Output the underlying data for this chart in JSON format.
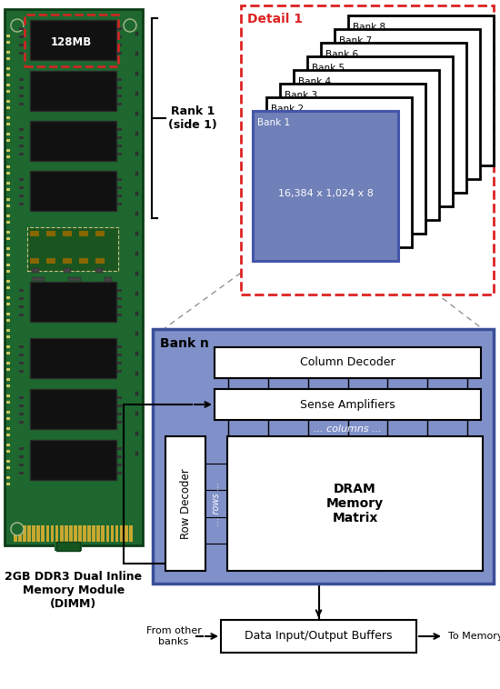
{
  "bg_color": "#ffffff",
  "dimm_label": "2GB DDR3 Dual Inline\nMemory Module\n(DIMM)",
  "rank_label": "Rank 1\n(side 1)",
  "detail1_label": "Detail 1",
  "bank1_sublabel": "16,384 x 1,024 x 8",
  "banks": [
    "Bank 8",
    "Bank 7",
    "Bank 6",
    "Bank 5",
    "Bank 4",
    "Bank 3",
    "Bank 2",
    "Bank 1"
  ],
  "bankn_label": "Bank n",
  "col_decoder_label": "Column Decoder",
  "sense_amp_label": "Sense Amplifiers",
  "col_label": "... columns ...",
  "row_decoder_label": "Row Decoder",
  "rows_label": "... rows ...",
  "dram_label": "DRAM\nMemory\nMatrix",
  "io_buf_label": "Data Input/Output Buffers",
  "from_label": "From other\nbanks",
  "to_label": "To Memory Bus",
  "pcb_green": "#1e6830",
  "pcb_edge": "#0d3d16",
  "gold": "#c8a830",
  "chip_black": "#111111",
  "blue_fill": "#8090c8",
  "bank1_fill": "#7080b8",
  "detail_red": "#dd2222",
  "bankn_fill": "#8090c8",
  "white": "#ffffff",
  "black": "#000000"
}
